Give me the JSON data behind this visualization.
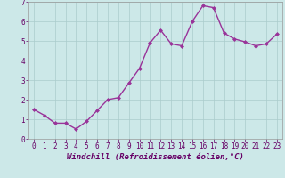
{
  "x": [
    0,
    1,
    2,
    3,
    4,
    5,
    6,
    7,
    8,
    9,
    10,
    11,
    12,
    13,
    14,
    15,
    16,
    17,
    18,
    19,
    20,
    21,
    22,
    23
  ],
  "y": [
    1.5,
    1.2,
    0.8,
    0.8,
    0.5,
    0.9,
    1.45,
    2.0,
    2.1,
    2.85,
    3.6,
    4.9,
    5.55,
    4.85,
    4.75,
    6.0,
    6.8,
    6.7,
    5.4,
    5.1,
    4.95,
    4.75,
    4.85,
    5.35
  ],
  "line_color": "#993399",
  "marker": "D",
  "marker_size": 2.0,
  "xlabel": "Windchill (Refroidissement éolien,°C)",
  "xlim": [
    -0.5,
    23.5
  ],
  "ylim": [
    0,
    7
  ],
  "yticks": [
    0,
    1,
    2,
    3,
    4,
    5,
    6,
    7
  ],
  "xticks": [
    0,
    1,
    2,
    3,
    4,
    5,
    6,
    7,
    8,
    9,
    10,
    11,
    12,
    13,
    14,
    15,
    16,
    17,
    18,
    19,
    20,
    21,
    22,
    23
  ],
  "grid_color": "#aacccc",
  "bg_color": "#cce8e8",
  "tick_color": "#660066",
  "tick_fontsize": 5.5,
  "xlabel_fontsize": 6.5,
  "line_width": 1.0
}
